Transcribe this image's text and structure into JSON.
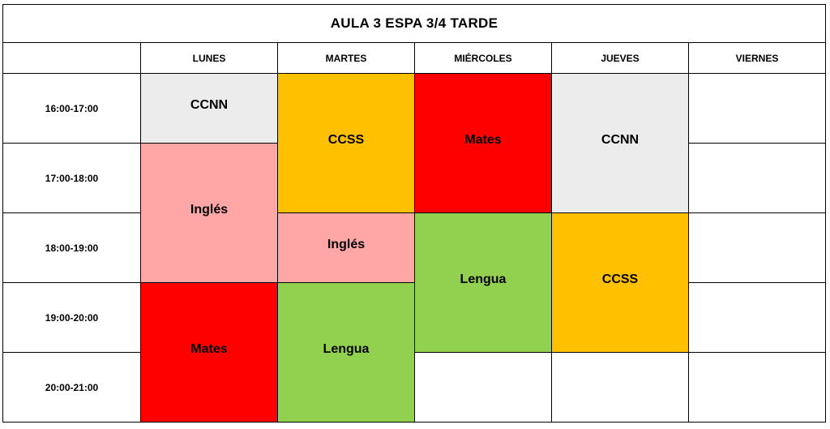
{
  "title": "AULA 3 ESPA 3/4   TARDE",
  "days": [
    "LUNES",
    "MARTES",
    "MIÉRCOLES",
    "JUEVES",
    "VIERNES"
  ],
  "times": [
    "16:00-17:00",
    "17:00-18:00",
    "18:00-19:00",
    "19:00-20:00",
    "20:00-21:00"
  ],
  "classes": {
    "lunes_1": {
      "label": "CCNN",
      "color": "#ececec"
    },
    "lunes_2": {
      "label": "Inglés",
      "color": "#ffa7a7"
    },
    "lunes_3": {
      "label": "Mates",
      "color": "#ff0000"
    },
    "martes_1": {
      "label": "CCSS",
      "color": "#ffc000"
    },
    "martes_2": {
      "label": "Inglés",
      "color": "#ffa7a7"
    },
    "martes_3": {
      "label": "Lengua",
      "color": "#92d050"
    },
    "miercoles_1": {
      "label": "Mates",
      "color": "#ff0000"
    },
    "miercoles_2": {
      "label": "Lengua",
      "color": "#92d050"
    },
    "jueves_1": {
      "label": "CCNN",
      "color": "#ececec"
    },
    "jueves_2": {
      "label": "CCSS",
      "color": "#ffc000"
    }
  }
}
